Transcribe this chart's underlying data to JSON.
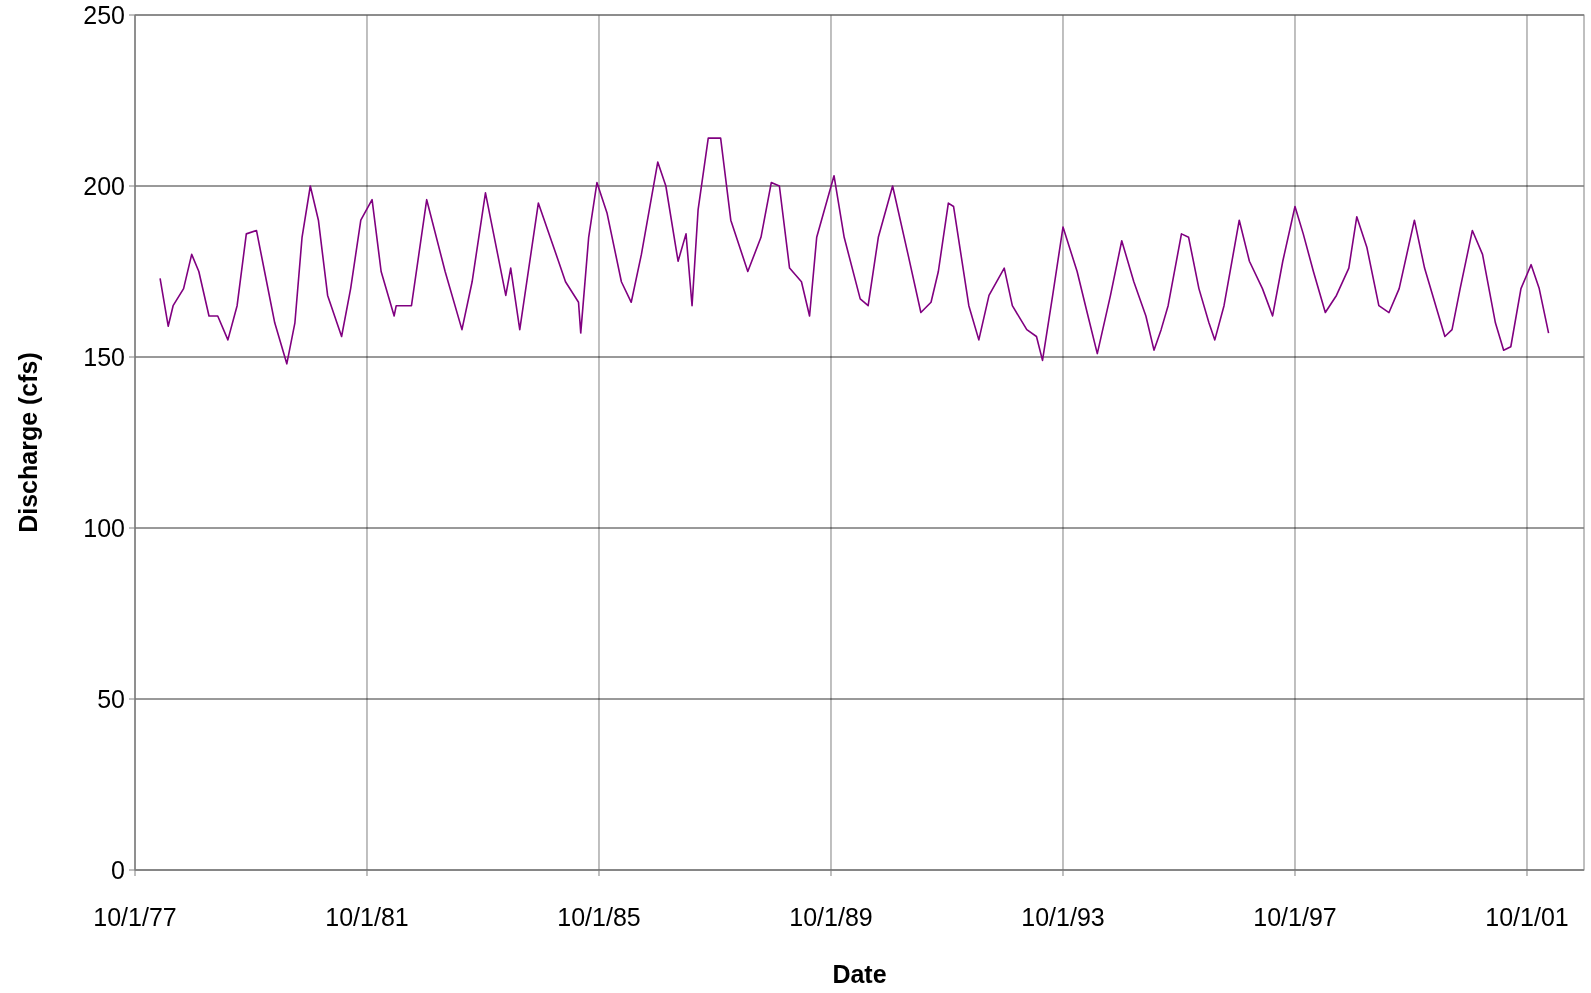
{
  "chart_data": {
    "type": "line",
    "xlabel": "Date",
    "ylabel": "Discharge (cfs)",
    "xlim": [
      "1977-10-01",
      "2002-09-25"
    ],
    "xticks": [
      {
        "value": "1977-10-01",
        "label": "10/1/77"
      },
      {
        "value": "1981-10-01",
        "label": "10/1/81"
      },
      {
        "value": "1985-10-01",
        "label": "10/1/85"
      },
      {
        "value": "1989-10-01",
        "label": "10/1/89"
      },
      {
        "value": "1993-10-01",
        "label": "10/1/93"
      },
      {
        "value": "1997-10-01",
        "label": "10/1/97"
      },
      {
        "value": "2001-10-01",
        "label": "10/1/01"
      }
    ],
    "ylim": [
      0,
      250
    ],
    "yticks": [
      0,
      50,
      100,
      150,
      200,
      250
    ],
    "grid": true,
    "x": [
      "1978-03-08",
      "1978-04-28",
      "1978-05-29",
      "1978-08-03",
      "1978-09-23",
      "1978-11-07",
      "1979-01-10",
      "1979-03-06",
      "1979-05-09",
      "1979-07-06",
      "1979-09-02",
      "1979-11-05",
      "1979-12-26",
      "1980-02-28",
      "1980-05-14",
      "1980-07-04",
      "1980-08-18",
      "1980-10-09",
      "1980-11-29",
      "1981-01-26",
      "1981-04-24",
      "1981-06-20",
      "1981-08-23",
      "1981-11-02",
      "1981-12-29",
      "1982-03-21",
      "1982-04-03",
      "1982-07-08",
      "1982-10-12",
      "1983-02-05",
      "1983-05-22",
      "1983-07-25",
      "1983-10-17",
      "1984-01-02",
      "1984-02-22",
      "1984-03-24",
      "1984-05-20",
      "1984-09-14",
      "1985-01-19",
      "1985-03-04",
      "1985-05-25",
      "1985-06-08",
      "1985-07-28",
      "1985-09-18",
      "1985-11-21",
      "1986-02-19",
      "1986-04-22",
      "1986-06-25",
      "1986-10-06",
      "1986-11-26",
      "1987-02-11",
      "1987-04-02",
      "1987-05-10",
      "1987-06-17",
      "1987-08-20",
      "1987-11-06",
      "1988-01-09",
      "1988-04-25",
      "1988-07-17",
      "1988-09-20",
      "1988-11-10",
      "1989-01-13",
      "1989-03-29",
      "1989-05-19",
      "1989-07-03",
      "1989-10-20",
      "1989-12-23",
      "1990-04-03",
      "1990-05-23",
      "1990-07-26",
      "1990-10-24",
      "1991-01-29",
      "1991-04-20",
      "1991-06-23",
      "1991-08-08",
      "1991-10-10",
      "1991-11-12",
      "1992-02-16",
      "1992-04-19",
      "1992-06-22",
      "1992-09-26",
      "1992-11-16",
      "1993-02-15",
      "1993-04-17",
      "1993-05-25",
      "1993-07-28",
      "1993-10-01",
      "1993-12-29",
      "1994-03-02",
      "1994-05-05",
      "1994-07-27",
      "1994-10-06",
      "1994-12-21",
      "1995-03-07",
      "1995-04-27",
      "1995-06-11",
      "1995-07-25",
      "1995-10-17",
      "1995-12-01",
      "1996-02-04",
      "1996-04-07",
      "1996-05-14",
      "1996-07-11",
      "1996-10-15",
      "1996-12-18",
      "1997-03-10",
      "1997-05-13",
      "1997-07-16",
      "1997-10-01",
      "1997-11-22",
      "1998-01-25",
      "1998-04-10",
      "1998-06-19",
      "1998-09-05",
      "1998-10-25",
      "1998-12-28",
      "1999-03-13",
      "1999-05-16",
      "1999-07-19",
      "1999-10-23",
      "1999-12-26",
      "2000-03-18",
      "2000-05-02",
      "2000-06-16",
      "2000-08-06",
      "2000-10-22",
      "2000-12-25",
      "2001-03-16",
      "2001-05-07",
      "2001-06-21",
      "2001-08-24",
      "2001-10-27",
      "2001-12-17",
      "2002-02-14"
    ],
    "series": [
      {
        "color": "#800080",
        "values": [
          173,
          159,
          165,
          170,
          180,
          175,
          162,
          162,
          155,
          165,
          186,
          187,
          175,
          160,
          148,
          160,
          185,
          200,
          190,
          168,
          156,
          170,
          190,
          196,
          175,
          162,
          165,
          165,
          196,
          175,
          158,
          172,
          198,
          180,
          168,
          176,
          158,
          195,
          178,
          172,
          166,
          157,
          185,
          201,
          192,
          172,
          166,
          180,
          207,
          200,
          178,
          186,
          165,
          193,
          214,
          214,
          190,
          175,
          185,
          201,
          200,
          176,
          172,
          162,
          185,
          203,
          185,
          167,
          165,
          185,
          200,
          180,
          163,
          166,
          175,
          195,
          194,
          165,
          155,
          168,
          176,
          165,
          158,
          156,
          149,
          168,
          188,
          175,
          163,
          151,
          168,
          184,
          172,
          162,
          152,
          158,
          165,
          186,
          185,
          170,
          160,
          155,
          165,
          190,
          178,
          170,
          162,
          178,
          194,
          186,
          175,
          163,
          168,
          176,
          191,
          182,
          165,
          163,
          170,
          190,
          176,
          163,
          156,
          158,
          170,
          187,
          180,
          160,
          152,
          153,
          170,
          177,
          170,
          157
        ]
      }
    ]
  }
}
